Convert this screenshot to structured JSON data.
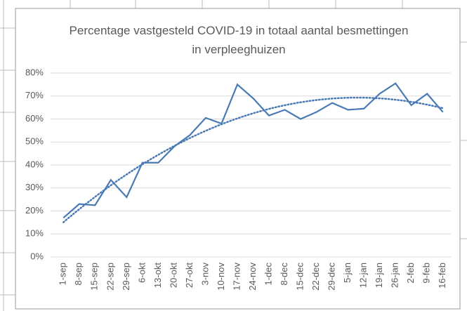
{
  "chart_data": {
    "type": "line",
    "title": "Percentage vastgesteld COVID-19 in totaal aantal besmettingen in verpleeghuizen",
    "categories": [
      "1-sep",
      "8-sep",
      "15-sep",
      "22-sep",
      "29-sep",
      "6-okt",
      "13-okt",
      "20-okt",
      "27-okt",
      "3-nov",
      "10-nov",
      "17-nov",
      "24-nov",
      "1-dec",
      "8-dec",
      "15-dec",
      "22-dec",
      "29-dec",
      "5-jan",
      "12-jan",
      "19-jan",
      "26-jan",
      "2-feb",
      "9-feb",
      "16-feb"
    ],
    "series": [
      {
        "color": "#4a7ab5",
        "values": [
          17,
          23,
          22.5,
          33.5,
          26,
          41,
          41,
          48,
          53,
          60.5,
          58,
          75,
          69,
          61.5,
          64,
          60,
          63,
          67,
          64,
          64.5,
          71,
          75.5,
          66,
          71,
          63
        ]
      }
    ],
    "ylim": [
      0,
      80
    ],
    "yticks": [
      {
        "value": 0,
        "label": "0%"
      },
      {
        "value": 10,
        "label": "10%"
      },
      {
        "value": 20,
        "label": "20%"
      },
      {
        "value": 30,
        "label": "30%"
      },
      {
        "value": 40,
        "label": "40%"
      },
      {
        "value": 50,
        "label": "50%"
      },
      {
        "value": 60,
        "label": "60%"
      },
      {
        "value": 70,
        "label": "70%"
      },
      {
        "value": 80,
        "label": "80%"
      }
    ],
    "grid": true,
    "trendline": {
      "kind": "polynomial",
      "order": 2,
      "color": "#4a7ab5",
      "style": "dotted"
    }
  }
}
